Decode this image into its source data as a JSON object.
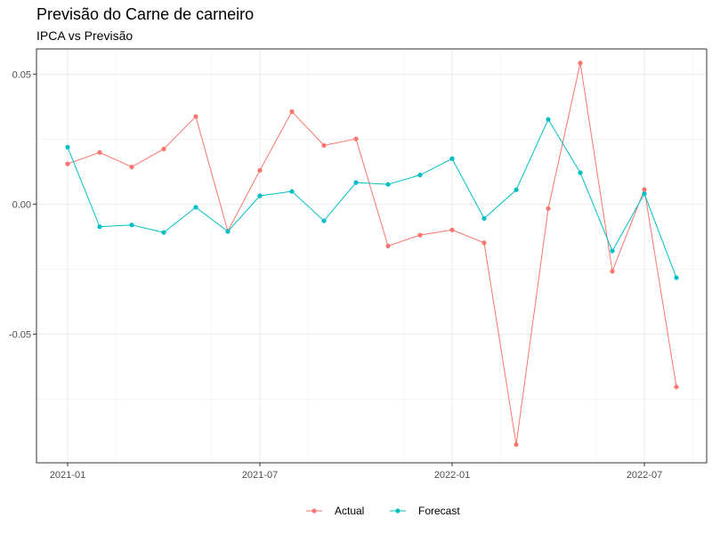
{
  "chart_data": {
    "type": "line",
    "title": "Previsão do Carne de carneiro",
    "subtitle": "IPCA vs Previsão",
    "xlabel": "",
    "ylabel": "",
    "x": [
      "2021-01",
      "2021-02",
      "2021-03",
      "2021-04",
      "2021-05",
      "2021-06",
      "2021-07",
      "2021-08",
      "2021-09",
      "2021-10",
      "2021-11",
      "2021-12",
      "2022-01",
      "2022-02",
      "2022-03",
      "2022-04",
      "2022-05",
      "2022-06",
      "2022-07",
      "2022-08"
    ],
    "x_tick_labels": [
      "2021-01",
      "2021-07",
      "2022-01",
      "2022-07"
    ],
    "y_tick_labels": [
      "0.05",
      "0.00",
      "-0.05"
    ],
    "y_ticks": [
      0.05,
      0.0,
      -0.05
    ],
    "ylim": [
      -0.0995,
      0.0597
    ],
    "grid": true,
    "legend_position": "bottom",
    "series": [
      {
        "name": "Actual",
        "color": "#F8766D",
        "values": [
          0.0155,
          0.0199,
          0.0143,
          0.0212,
          0.0337,
          -0.0104,
          0.013,
          0.0356,
          0.0226,
          0.0251,
          -0.0161,
          -0.0119,
          -0.0099,
          -0.0149,
          -0.0925,
          -0.0017,
          0.0543,
          -0.0258,
          0.0056,
          -0.0703
        ]
      },
      {
        "name": "Forecast",
        "color": "#00BFC4",
        "values": [
          0.0219,
          -0.0087,
          -0.008,
          -0.0109,
          -0.0012,
          -0.0105,
          0.0032,
          0.0049,
          -0.0064,
          0.0083,
          0.0076,
          0.0112,
          0.0175,
          -0.0055,
          0.0055,
          0.0326,
          0.0121,
          -0.018,
          0.004,
          -0.0283
        ]
      }
    ]
  }
}
